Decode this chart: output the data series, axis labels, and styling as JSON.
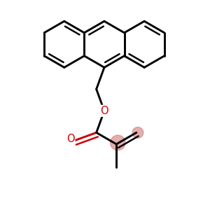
{
  "bg": "#ffffff",
  "lc": "#000000",
  "rc": "#cc0000",
  "pc": "#d07878",
  "lw": 2.1,
  "dbo": 0.028,
  "shrink": 0.14,
  "r": 0.16,
  "mx": 0.02,
  "my": 0.62,
  "fig_size": [
    3.0,
    3.0
  ],
  "dpi": 100
}
